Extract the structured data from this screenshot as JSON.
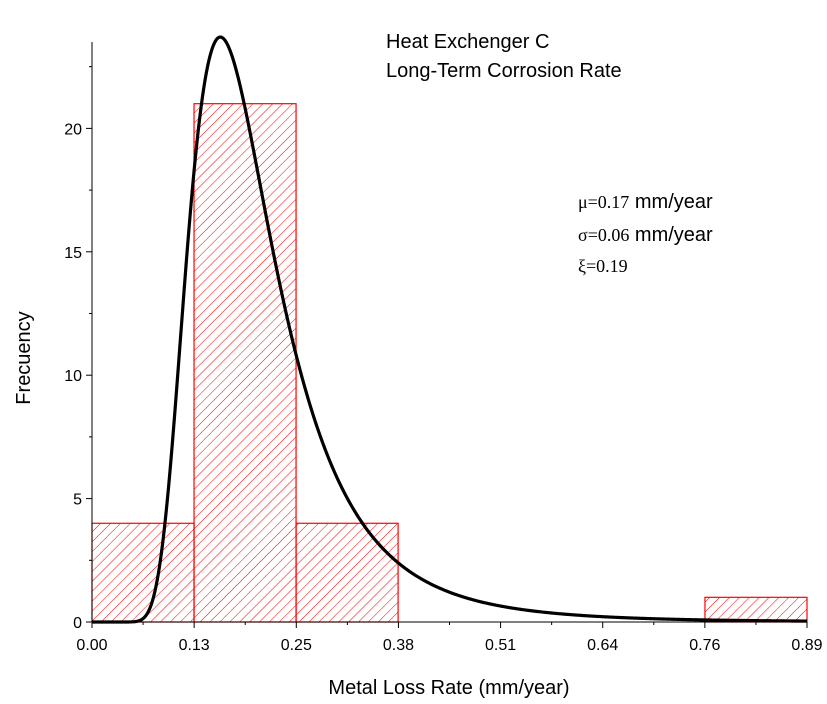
{
  "chart_data": {
    "type": "bar",
    "title_lines": [
      "Heat Exchenger C",
      "Long-Term Corrosion Rate"
    ],
    "xlabel": "Metal Loss Rate (mm/year)",
    "ylabel": "Frecuency",
    "xlim": [
      0,
      0.89
    ],
    "ylim": [
      0,
      23.5
    ],
    "x_tick_labels": [
      "0.00",
      "0.13",
      "0.25",
      "0.38",
      "0.51",
      "0.64",
      "0.76",
      "0.89"
    ],
    "y_ticks": [
      0,
      5,
      10,
      15,
      20
    ],
    "bins": [
      {
        "start": 0.0,
        "end": 0.127,
        "value": 4
      },
      {
        "start": 0.127,
        "end": 0.254,
        "value": 21
      },
      {
        "start": 0.254,
        "end": 0.381,
        "value": 4
      },
      {
        "start": 0.381,
        "end": 0.508,
        "value": 0
      },
      {
        "start": 0.508,
        "end": 0.635,
        "value": 0
      },
      {
        "start": 0.635,
        "end": 0.763,
        "value": 0
      },
      {
        "start": 0.763,
        "end": 0.89,
        "value": 1
      }
    ],
    "bar_fill": "hatched",
    "bar_color": "#ff0000",
    "curve": {
      "type": "gev",
      "mu": 0.17,
      "sigma": 0.06,
      "xi": 0.19,
      "peak": 23.7,
      "color": "#000000"
    },
    "annotations": [
      {
        "symbol": "μ",
        "text": "=0.17",
        "unit": " mm/year"
      },
      {
        "symbol": "σ",
        "text": "=0.06",
        "unit": " mm/year"
      },
      {
        "symbol": "ξ",
        "text": "=0.19",
        "unit": ""
      }
    ]
  }
}
